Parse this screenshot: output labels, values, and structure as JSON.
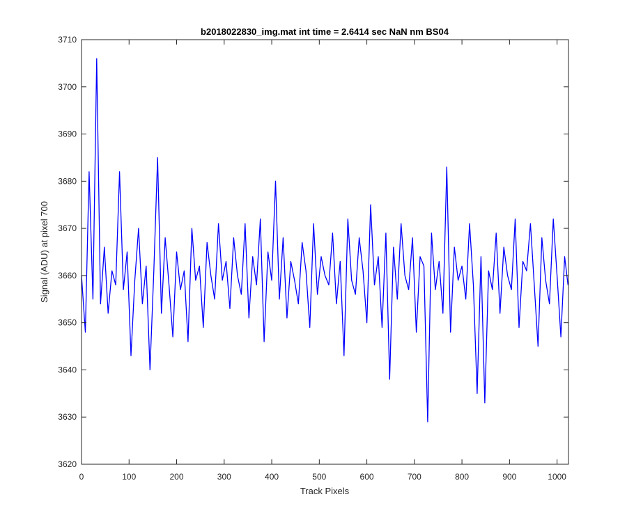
{
  "chart_data": {
    "type": "line",
    "title": "b2018022830_img.mat int time = 2.6414 sec  NaN nm BS04",
    "xlabel": "Track Pixels",
    "ylabel": "Signal (ADU) at pixel 700",
    "xlim": [
      0,
      1024
    ],
    "ylim": [
      3620,
      3710
    ],
    "xticks": [
      0,
      100,
      200,
      300,
      400,
      500,
      600,
      700,
      800,
      900,
      1000
    ],
    "yticks": [
      3620,
      3630,
      3640,
      3650,
      3660,
      3670,
      3680,
      3690,
      3700,
      3710
    ],
    "grid": false,
    "line_color": "#0000ff",
    "series": [
      {
        "x": [
          0,
          8,
          16,
          24,
          32,
          40,
          48,
          56,
          64,
          72,
          80,
          88,
          96,
          104,
          112,
          120,
          128,
          136,
          144,
          152,
          160,
          168,
          176,
          184,
          192,
          200,
          208,
          216,
          224,
          232,
          240,
          248,
          256,
          264,
          272,
          280,
          288,
          296,
          304,
          312,
          320,
          328,
          336,
          344,
          352,
          360,
          368,
          376,
          384,
          392,
          400,
          408,
          416,
          424,
          432,
          440,
          448,
          456,
          464,
          472,
          480,
          488,
          496,
          504,
          512,
          520,
          528,
          536,
          544,
          552,
          560,
          568,
          576,
          584,
          592,
          600,
          608,
          616,
          624,
          632,
          640,
          648,
          656,
          664,
          672,
          680,
          688,
          696,
          704,
          712,
          720,
          728,
          736,
          744,
          752,
          760,
          768,
          776,
          784,
          792,
          800,
          808,
          816,
          824,
          832,
          840,
          848,
          856,
          864,
          872,
          880,
          888,
          896,
          904,
          912,
          920,
          928,
          936,
          944,
          952,
          960,
          968,
          976,
          984,
          992,
          1000,
          1008,
          1016,
          1023
        ],
        "values": [
          3660,
          3648,
          3682,
          3655,
          3706,
          3654,
          3666,
          3652,
          3661,
          3658,
          3682,
          3657,
          3665,
          3643,
          3659,
          3670,
          3654,
          3662,
          3640,
          3661,
          3685,
          3652,
          3668,
          3658,
          3647,
          3665,
          3657,
          3661,
          3646,
          3670,
          3659,
          3662,
          3649,
          3667,
          3660,
          3655,
          3671,
          3659,
          3663,
          3653,
          3668,
          3660,
          3656,
          3671,
          3651,
          3664,
          3658,
          3672,
          3646,
          3665,
          3659,
          3680,
          3655,
          3668,
          3651,
          3663,
          3659,
          3654,
          3667,
          3661,
          3649,
          3671,
          3656,
          3664,
          3660,
          3658,
          3669,
          3654,
          3663,
          3643,
          3672,
          3659,
          3656,
          3668,
          3661,
          3650,
          3675,
          3658,
          3664,
          3649,
          3669,
          3638,
          3666,
          3655,
          3671,
          3660,
          3657,
          3668,
          3648,
          3664,
          3662,
          3629,
          3669,
          3657,
          3663,
          3652,
          3683,
          3648,
          3666,
          3659,
          3662,
          3655,
          3671,
          3658,
          3635,
          3664,
          3633,
          3661,
          3657,
          3669,
          3652,
          3666,
          3660,
          3657,
          3672,
          3649,
          3663,
          3661,
          3671,
          3658,
          3645,
          3668,
          3659,
          3654,
          3672,
          3660,
          3647,
          3664,
          3658
        ]
      }
    ]
  }
}
